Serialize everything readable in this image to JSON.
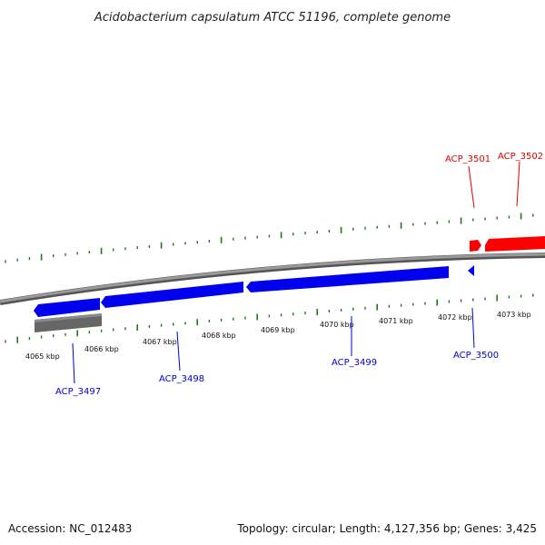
{
  "title": "Acidobacterium capsulatum ATCC 51196, complete genome",
  "footer": {
    "accession": "Accession: NC_012483",
    "summary": "Topology: circular; Length: 4,127,356 bp; Genes: 3,425"
  },
  "colors": {
    "forward_gene": "#ff0000",
    "reverse_gene": "#0000ee",
    "other_feature": "#666666",
    "backbone": "#888888",
    "ticks": "#1a7a1a",
    "forward_label": "#dd0000",
    "reverse_label": "#0000cc"
  },
  "scale": {
    "kbp_labels": [
      "4065 kbp",
      "4066 kbp",
      "4067 kbp",
      "4068 kbp",
      "4069 kbp",
      "4070 kbp",
      "4071 kbp",
      "4072 kbp",
      "4073 kbp"
    ]
  },
  "genes": {
    "forward": [
      {
        "id": "ACP_3501"
      },
      {
        "id": "ACP_3502"
      }
    ],
    "reverse": [
      {
        "id": "ACP_3497"
      },
      {
        "id": "ACP_3498"
      },
      {
        "id": "ACP_3499"
      },
      {
        "id": "ACP_3500"
      }
    ]
  }
}
